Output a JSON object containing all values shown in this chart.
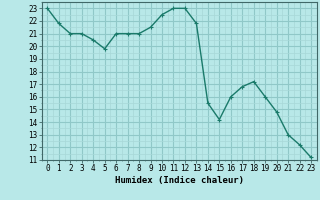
{
  "x": [
    0,
    1,
    2,
    3,
    4,
    5,
    6,
    7,
    8,
    9,
    10,
    11,
    12,
    13,
    14,
    15,
    16,
    17,
    18,
    19,
    20,
    21,
    22,
    23
  ],
  "y": [
    23,
    21.8,
    21.0,
    21.0,
    20.5,
    19.8,
    21.0,
    21.0,
    21.0,
    21.5,
    22.5,
    23.0,
    23.0,
    21.8,
    15.5,
    14.2,
    16.0,
    16.8,
    17.2,
    16.0,
    14.8,
    13.0,
    12.2,
    11.2
  ],
  "line_color": "#1a7a6a",
  "marker": "+",
  "marker_size": 3,
  "bg_color": "#b8e8e8",
  "grid_major_color": "#90c8c8",
  "grid_minor_color": "#a8d8d8",
  "xlabel": "Humidex (Indice chaleur)",
  "xlim": [
    -0.5,
    23.5
  ],
  "ylim": [
    11,
    23.5
  ],
  "yticks": [
    11,
    12,
    13,
    14,
    15,
    16,
    17,
    18,
    19,
    20,
    21,
    22,
    23
  ],
  "xticks": [
    0,
    1,
    2,
    3,
    4,
    5,
    6,
    7,
    8,
    9,
    10,
    11,
    12,
    13,
    14,
    15,
    16,
    17,
    18,
    19,
    20,
    21,
    22,
    23
  ],
  "tick_fontsize": 5.5,
  "xlabel_fontsize": 6.5,
  "line_width": 1.0
}
